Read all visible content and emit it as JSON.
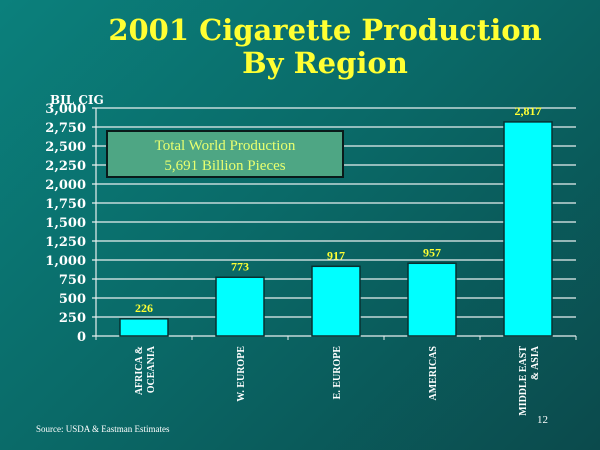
{
  "chart_data": {
    "type": "bar",
    "title": "2001 Cigarette Production By Region",
    "title_lines": [
      "2001 Cigarette Production",
      "By Region"
    ],
    "ylabel": "BIL CIG",
    "xlabel": "",
    "categories": [
      [
        "AFRICA &",
        "OCEANIA"
      ],
      [
        "W. EUROPE"
      ],
      [
        "E. EUROPE"
      ],
      [
        "AMERICAS"
      ],
      [
        "MIDDLE EAST",
        "& ASIA"
      ]
    ],
    "values": [
      226,
      773,
      917,
      957,
      2817
    ],
    "value_labels": [
      "226",
      "773",
      "917",
      "957",
      "2,817"
    ],
    "ylim": [
      0,
      3000
    ],
    "yticks": [
      "0",
      "250",
      "500",
      "750",
      "1,000",
      "1,250",
      "1,500",
      "1,750",
      "2,000",
      "2,250",
      "2,500",
      "2,750",
      "3,000"
    ],
    "grid": true,
    "bar_color": "#00ffff",
    "annotation": [
      "Total World Production",
      "5,691 Billion Pieces"
    ]
  },
  "footer": {
    "source": "Source: USDA & Eastman Estimates",
    "page_number": "12"
  }
}
